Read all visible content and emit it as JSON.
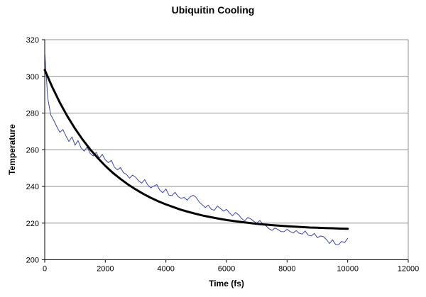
{
  "chart_data": {
    "type": "line",
    "title": "Ubiquitin Cooling",
    "xlabel": "Time (fs)",
    "ylabel": "Temperature",
    "xlim": [
      0,
      12000
    ],
    "ylim": [
      200,
      320
    ],
    "x_ticks": [
      "0",
      "2000",
      "4000",
      "6000",
      "8000",
      "10000",
      "12000"
    ],
    "y_ticks": [
      "200",
      "220",
      "240",
      "260",
      "280",
      "300",
      "320"
    ],
    "grid": "horizontal",
    "legend": "none",
    "colors": {
      "noisy_series": "#3c46a8",
      "smooth_series": "#000000",
      "gridline": "#909090",
      "plot_border": "#909090",
      "axis": "#000000"
    },
    "series": [
      {
        "id": "md-simulation-noisy",
        "color": "#3c46a8",
        "stroke_width": 1,
        "x": [
          0,
          100,
          200,
          300,
          400,
          500,
          600,
          700,
          800,
          900,
          1000,
          1100,
          1200,
          1300,
          1400,
          1500,
          1600,
          1700,
          1800,
          1900,
          2000,
          2100,
          2200,
          2300,
          2400,
          2500,
          2600,
          2700,
          2800,
          2900,
          3000,
          3100,
          3200,
          3300,
          3400,
          3500,
          3600,
          3700,
          3800,
          3900,
          4000,
          4100,
          4200,
          4300,
          4400,
          4500,
          4600,
          4700,
          4800,
          4900,
          5000,
          5100,
          5200,
          5300,
          5400,
          5500,
          5600,
          5700,
          5800,
          5900,
          6000,
          6100,
          6200,
          6300,
          6400,
          6500,
          6600,
          6700,
          6800,
          6900,
          7000,
          7100,
          7200,
          7300,
          7400,
          7500,
          7600,
          7700,
          7800,
          7900,
          8000,
          8100,
          8200,
          8300,
          8400,
          8500,
          8600,
          8700,
          8800,
          8900,
          9000,
          9100,
          9200,
          9300,
          9400,
          9500,
          9600,
          9700,
          9800,
          9900,
          10000
        ],
        "y": [
          313,
          288,
          279,
          276,
          272.5,
          269.5,
          271,
          267.5,
          264.5,
          267,
          262.5,
          265,
          261,
          259.2,
          261.5,
          258,
          256.6,
          258.6,
          255.3,
          257.5,
          254.5,
          253,
          254.2,
          250.5,
          249,
          250.3,
          247.5,
          246.5,
          244.5,
          246.2,
          245,
          243,
          241.8,
          243.7,
          240.8,
          239.2,
          240.2,
          241,
          237.9,
          236.6,
          238.6,
          235.3,
          235,
          236.8,
          234.5,
          233.5,
          234,
          232.5,
          234.3,
          235.2,
          234,
          231.5,
          230,
          228.5,
          229.8,
          227.5,
          227,
          229.3,
          228,
          226.5,
          227.5,
          225.5,
          224,
          225.8,
          224.5,
          222.5,
          221.2,
          223,
          222.3,
          221,
          220,
          221.4,
          219.5,
          218.6,
          217,
          216,
          217.3,
          216.5,
          215.4,
          215.3,
          216.6,
          215.4,
          214.6,
          215.9,
          214.5,
          214,
          215.7,
          213.4,
          213,
          214.4,
          212,
          213,
          212.6,
          211,
          208.9,
          210.9,
          208.4,
          208.2,
          210,
          209.4,
          211.7
        ]
      },
      {
        "id": "exponential-fit-smooth",
        "color": "#000000",
        "stroke_width": 3,
        "x": [
          0,
          250,
          500,
          750,
          1000,
          1250,
          1500,
          1750,
          2000,
          2250,
          2500,
          2750,
          3000,
          3250,
          3500,
          3750,
          4000,
          4250,
          4500,
          4750,
          5000,
          5250,
          5500,
          5750,
          6000,
          6250,
          6500,
          6750,
          7000,
          7250,
          7500,
          7750,
          8000,
          8250,
          8500,
          8750,
          9000,
          9250,
          9500,
          9750,
          10000
        ],
        "y": [
          303.5,
          294.1,
          285.7,
          278.2,
          271.5,
          265.6,
          260.2,
          255.5,
          251.2,
          247.4,
          244.1,
          241.1,
          238.4,
          236.0,
          233.8,
          231.9,
          230.2,
          228.7,
          227.3,
          226.1,
          225.0,
          224.0,
          223.2,
          222.4,
          221.7,
          221.1,
          220.6,
          220.1,
          219.6,
          219.2,
          218.9,
          218.6,
          218.3,
          218.1,
          217.8,
          217.6,
          217.5,
          217.3,
          217.2,
          217.0,
          216.9
        ]
      }
    ]
  }
}
